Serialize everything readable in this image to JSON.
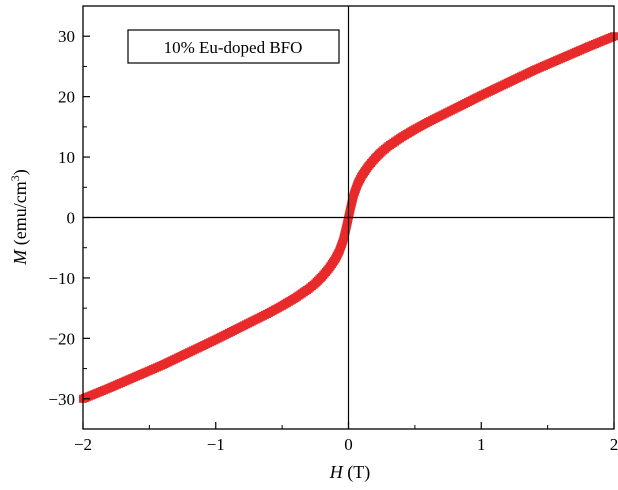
{
  "chart_data": {
    "type": "scatter",
    "xlabel_var": "H",
    "xlabel_unit": " (T)",
    "ylabel_var": "M",
    "ylabel_unit": " (emu/cm",
    "ylabel_sup": "3",
    "ylabel_close": ")",
    "xlim": [
      -2,
      2
    ],
    "ylim": [
      -35,
      35
    ],
    "xticks": [
      -2,
      -1,
      0,
      1,
      2
    ],
    "xtick_labels": [
      "−2",
      "−1",
      "0",
      "1",
      "2"
    ],
    "yticks": [
      -30,
      -20,
      -10,
      0,
      10,
      20,
      30
    ],
    "ytick_labels": [
      "−30",
      "−20",
      "−10",
      "0",
      "10",
      "20",
      "30"
    ],
    "legend": "10% Eu-doped BFO",
    "marker_color": "#e82a2a",
    "series": [
      {
        "name": "10% Eu-doped BFO",
        "x": [
          -2.0,
          -1.8,
          -1.6,
          -1.4,
          -1.2,
          -1.0,
          -0.8,
          -0.6,
          -0.5,
          -0.4,
          -0.3,
          -0.25,
          -0.2,
          -0.15,
          -0.1,
          -0.07,
          -0.04,
          -0.02,
          0.0,
          0.02,
          0.04,
          0.07,
          0.1,
          0.15,
          0.2,
          0.25,
          0.3,
          0.4,
          0.5,
          0.6,
          0.8,
          1.0,
          1.2,
          1.4,
          1.6,
          1.8,
          2.0
        ],
        "y": [
          -30.0,
          -28.2,
          -26.3,
          -24.4,
          -22.3,
          -20.2,
          -18.0,
          -15.8,
          -14.6,
          -13.3,
          -11.8,
          -10.9,
          -9.8,
          -8.5,
          -6.9,
          -5.6,
          -3.8,
          -2.0,
          0.0,
          2.0,
          3.8,
          5.6,
          6.9,
          8.5,
          9.8,
          10.9,
          11.8,
          13.3,
          14.6,
          15.8,
          18.0,
          20.2,
          22.3,
          24.4,
          26.3,
          28.2,
          30.0
        ]
      }
    ]
  }
}
